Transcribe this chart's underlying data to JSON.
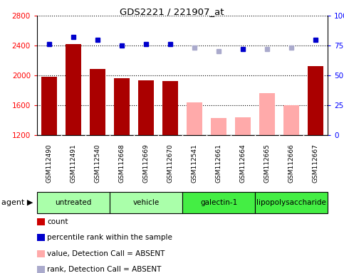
{
  "title": "GDS2221 / 221907_at",
  "samples": [
    "GSM112490",
    "GSM112491",
    "GSM112540",
    "GSM112668",
    "GSM112669",
    "GSM112670",
    "GSM112541",
    "GSM112661",
    "GSM112664",
    "GSM112665",
    "GSM112666",
    "GSM112667"
  ],
  "count_values": [
    1980,
    2420,
    2090,
    1960,
    1930,
    1920,
    null,
    null,
    null,
    null,
    null,
    2120
  ],
  "count_absent": [
    null,
    null,
    null,
    null,
    null,
    null,
    1640,
    1430,
    1440,
    1760,
    1600,
    null
  ],
  "percentile_values": [
    76,
    82,
    80,
    75,
    76,
    76,
    null,
    null,
    72,
    null,
    null,
    80
  ],
  "percentile_absent": [
    null,
    null,
    null,
    null,
    null,
    null,
    73,
    70,
    null,
    72,
    73,
    null
  ],
  "groups": [
    {
      "name": "untreated",
      "start": 0,
      "end": 2,
      "color": "#aaffaa"
    },
    {
      "name": "vehicle",
      "start": 3,
      "end": 5,
      "color": "#aaffaa"
    },
    {
      "name": "galectin-1",
      "start": 6,
      "end": 8,
      "color": "#44ee44"
    },
    {
      "name": "lipopolysaccharide",
      "start": 9,
      "end": 11,
      "color": "#44ee44"
    }
  ],
  "ylim_left": [
    1200,
    2800
  ],
  "ylim_right": [
    0,
    100
  ],
  "yticks_left": [
    1200,
    1600,
    2000,
    2400,
    2800
  ],
  "yticks_right": [
    0,
    25,
    50,
    75,
    100
  ],
  "bar_color_present": "#aa0000",
  "bar_color_absent": "#ffaaaa",
  "dot_color_present": "#0000cc",
  "dot_color_absent": "#aaaacc",
  "bar_width": 0.65,
  "tick_area_color": "#cccccc",
  "spine_color": "#000000",
  "legend_items": [
    {
      "color": "#cc0000",
      "label": "count",
      "is_square": true
    },
    {
      "color": "#0000cc",
      "label": "percentile rank within the sample",
      "is_square": true
    },
    {
      "color": "#ffaaaa",
      "label": "value, Detection Call = ABSENT",
      "is_square": true
    },
    {
      "color": "#aaaacc",
      "label": "rank, Detection Call = ABSENT",
      "is_square": true
    }
  ]
}
